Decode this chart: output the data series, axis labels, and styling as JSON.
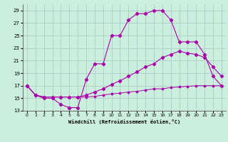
{
  "xlabel": "Windchill (Refroidissement éolien,°C)",
  "background_color": "#cceedd",
  "grid_color": "#aacccc",
  "line_color": "#aa00aa",
  "xlim": [
    -0.5,
    23.5
  ],
  "ylim": [
    13,
    30
  ],
  "xticks": [
    0,
    1,
    2,
    3,
    4,
    5,
    6,
    7,
    8,
    9,
    10,
    11,
    12,
    13,
    14,
    15,
    16,
    17,
    18,
    19,
    20,
    21,
    22,
    23
  ],
  "yticks": [
    13,
    15,
    17,
    19,
    21,
    23,
    25,
    27,
    29
  ],
  "curve1_x": [
    0,
    1,
    2,
    3,
    4,
    5,
    5,
    6,
    7,
    8,
    9,
    10,
    11,
    12,
    13,
    14,
    15,
    16,
    17,
    18,
    19,
    20,
    21,
    22,
    23
  ],
  "curve1_y": [
    17,
    15.5,
    15,
    15,
    14,
    13.5,
    13.5,
    13.5,
    18,
    20.5,
    20.5,
    25,
    25,
    27.5,
    28.5,
    28.5,
    29,
    29,
    27.5,
    24,
    24,
    24,
    22,
    18.5,
    17
  ],
  "curve2_x": [
    0,
    1,
    2,
    3,
    4,
    5,
    6,
    7,
    8,
    9,
    10,
    11,
    12,
    13,
    14,
    15,
    16,
    17,
    18,
    19,
    20,
    21,
    22,
    23
  ],
  "curve2_y": [
    17,
    15.5,
    15.2,
    15.2,
    15.2,
    15.2,
    15.2,
    15.5,
    16.0,
    16.5,
    17.2,
    17.8,
    18.5,
    19.2,
    20.0,
    20.5,
    21.5,
    22.0,
    22.5,
    22.2,
    22.0,
    21.5,
    20.0,
    18.5
  ],
  "curve3_x": [
    0,
    1,
    2,
    3,
    4,
    5,
    6,
    7,
    8,
    9,
    10,
    11,
    12,
    13,
    14,
    15,
    16,
    17,
    18,
    19,
    20,
    21,
    22,
    23
  ],
  "curve3_y": [
    17,
    15.5,
    15.2,
    15.2,
    15.2,
    15.2,
    15.2,
    15.2,
    15.3,
    15.5,
    15.7,
    15.8,
    16.0,
    16.1,
    16.3,
    16.5,
    16.5,
    16.7,
    16.8,
    16.9,
    17.0,
    17.0,
    17.0,
    17.0
  ]
}
